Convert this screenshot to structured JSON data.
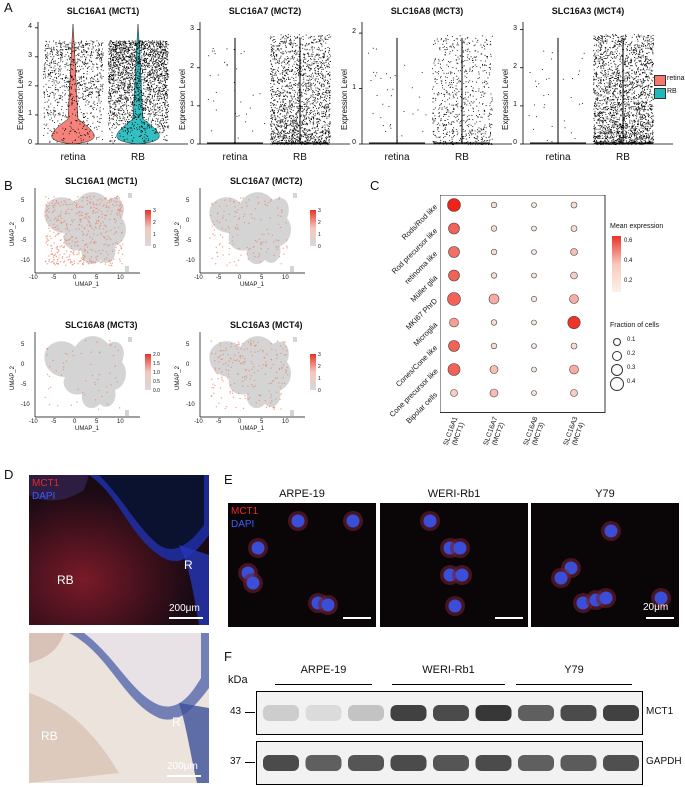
{
  "panel_labels": {
    "a": "A",
    "b": "B",
    "c": "C",
    "d": "D",
    "e": "E",
    "f": "F"
  },
  "panel_a": {
    "ylabel": "Expression Level",
    "categories": [
      "retina",
      "RB"
    ],
    "legend": [
      {
        "name": "retina",
        "color": "#f4766d"
      },
      {
        "name": "RB",
        "color": "#1fb9bd"
      }
    ],
    "violins": [
      {
        "title": "SLC16A1 (MCT1)",
        "ymax": 4.2,
        "ticks": [
          "4",
          "3",
          "2",
          "1",
          "0"
        ],
        "tickvals": [
          4,
          3,
          2,
          1,
          0
        ],
        "filled": true
      },
      {
        "title": "SLC16A7 (MCT2)",
        "ymax": 3.2,
        "ticks": [
          "3",
          "2",
          "1",
          "0"
        ],
        "tickvals": [
          3,
          2,
          1,
          0
        ],
        "filled": false
      },
      {
        "title": "SLC16A8 (MCT3)",
        "ymax": 2.2,
        "ticks": [
          "2",
          "1",
          "0"
        ],
        "tickvals": [
          2,
          1,
          0
        ],
        "filled": false
      },
      {
        "title": "SLC16A3 (MCT4)",
        "ymax": 3.2,
        "ticks": [
          "3",
          "2",
          "1",
          "0"
        ],
        "tickvals": [
          3,
          2,
          1,
          0
        ],
        "filled": false
      }
    ]
  },
  "panel_b": {
    "xlabel": "UMAP_1",
    "ylabel": "UMAP_2",
    "xticks": [
      "-10",
      "-5",
      "0",
      "5",
      "10"
    ],
    "yticks": [
      "5",
      "0",
      "-5",
      "-10"
    ],
    "plots": [
      {
        "title": "SLC16A1 (MCT1)",
        "scale": [
          "3",
          "2",
          "1",
          "0"
        ]
      },
      {
        "title": "SLC16A7 (MCT2)",
        "scale": [
          "3",
          "2",
          "1",
          "0"
        ]
      },
      {
        "title": "SLC16A8 (MCT3)",
        "scale": [
          "2.0",
          "1.5",
          "1.0",
          "0.5",
          "0.0"
        ]
      },
      {
        "title": "SLC16A3 (MCT4)",
        "scale": [
          "3",
          "2",
          "1",
          "0"
        ]
      }
    ]
  },
  "panel_c": {
    "rows": [
      "Rods/Rod like",
      "Rod precursor like",
      "retinoma like",
      "Müller glia",
      "MKI67 PhrD",
      "Microglia",
      "Cones/Cone like",
      "Cone precursor like",
      "Bipolar cells"
    ],
    "columns": [
      "SLC16A1 (MCT1)",
      "SLC16A7 (MCT2)",
      "SLC16A8 (MCT3)",
      "SLC16A3 (MCT4)"
    ],
    "mean_expression_title": "Mean expression",
    "mean_expression_ticks": [
      "0.6",
      "0.4",
      "0.2"
    ],
    "fraction_title": "Fraction of cells",
    "fraction_ticks": [
      "0.1",
      "0.2",
      "0.3",
      "0.4"
    ],
    "values": [
      [
        [
          0.65,
          0.45
        ],
        [
          0.05,
          0.08
        ],
        [
          0.02,
          0.05
        ],
        [
          0.05,
          0.1
        ]
      ],
      [
        [
          0.45,
          0.35
        ],
        [
          0.05,
          0.08
        ],
        [
          0.02,
          0.05
        ],
        [
          0.05,
          0.1
        ]
      ],
      [
        [
          0.4,
          0.35
        ],
        [
          0.05,
          0.08
        ],
        [
          0.02,
          0.05
        ],
        [
          0.15,
          0.15
        ]
      ],
      [
        [
          0.45,
          0.35
        ],
        [
          0.05,
          0.08
        ],
        [
          0.02,
          0.05
        ],
        [
          0.1,
          0.15
        ]
      ],
      [
        [
          0.45,
          0.45
        ],
        [
          0.2,
          0.3
        ],
        [
          0.02,
          0.07
        ],
        [
          0.2,
          0.25
        ]
      ],
      [
        [
          0.25,
          0.25
        ],
        [
          0.05,
          0.08
        ],
        [
          0.02,
          0.05
        ],
        [
          0.6,
          0.42
        ]
      ],
      [
        [
          0.45,
          0.35
        ],
        [
          0.05,
          0.08
        ],
        [
          0.02,
          0.05
        ],
        [
          0.05,
          0.1
        ]
      ],
      [
        [
          0.45,
          0.4
        ],
        [
          0.15,
          0.2
        ],
        [
          0.02,
          0.05
        ],
        [
          0.2,
          0.25
        ]
      ],
      [
        [
          0.1,
          0.15
        ],
        [
          0.15,
          0.2
        ],
        [
          0.02,
          0.05
        ],
        [
          0.1,
          0.15
        ]
      ]
    ]
  },
  "panel_d": {
    "legend_mct1": "MCT1",
    "legend_dapi": "DAPI",
    "label_rb": "RB",
    "label_r": "R",
    "scale": "200μm",
    "colors": {
      "mct1": "#e8272a",
      "dapi": "#2a4be0"
    }
  },
  "panel_e": {
    "cells": [
      "ARPE-19",
      "WERI-Rb1",
      "Y79"
    ],
    "legend_mct1": "MCT1",
    "legend_dapi": "DAPI",
    "scale": "20μm"
  },
  "panel_f": {
    "kda": "kDa",
    "groups": [
      "ARPE-19",
      "WERI-Rb1",
      "Y79"
    ],
    "marker_43": "43",
    "marker_37": "37",
    "band_top": "MCT1",
    "band_bottom": "GAPDH",
    "mct1_intensity": [
      0.15,
      0.08,
      0.2,
      0.85,
      0.8,
      0.9,
      0.7,
      0.8,
      0.85
    ],
    "gapdh_intensity": [
      0.8,
      0.7,
      0.75,
      0.8,
      0.75,
      0.8,
      0.7,
      0.72,
      0.78
    ]
  }
}
